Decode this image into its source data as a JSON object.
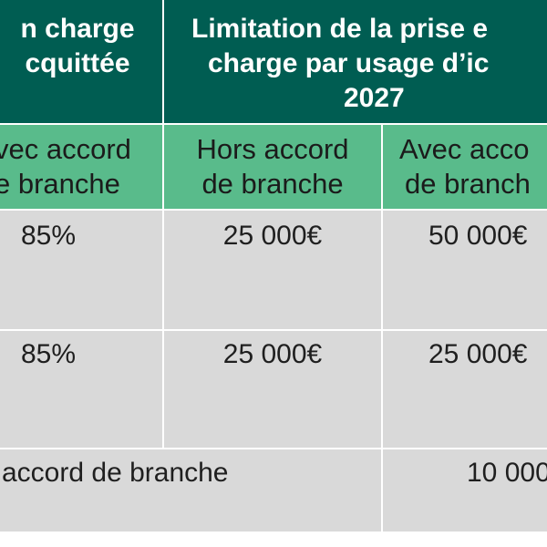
{
  "header": {
    "col_a": [
      "n charge",
      "cquittée"
    ],
    "col_b": [
      "Limitation de la prise e",
      "charge par usage d’ic",
      "2027"
    ]
  },
  "subheader": {
    "col_a": [
      "vec accord",
      "e branche"
    ],
    "col_b": [
      "Hors accord",
      "de branche"
    ],
    "col_c": [
      "Avec acco",
      "de branch"
    ]
  },
  "rows": [
    {
      "col_a": "85%",
      "col_b": "25 000€",
      "col_c": "50 000€"
    },
    {
      "col_a": "85%",
      "col_b": "25 000€",
      "col_c": "25 000€"
    }
  ],
  "footer_row": {
    "label": "accord de branche",
    "value": "10 000"
  },
  "colors": {
    "header_bg": "#005d52",
    "subheader_bg": "#59bb8b",
    "body_bg": "#d9d9d9",
    "grid_line": "#ffffff"
  }
}
